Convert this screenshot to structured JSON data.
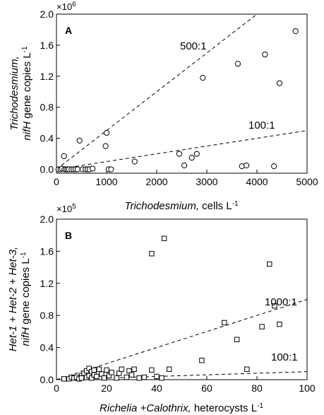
{
  "chart_data": [
    {
      "panel": "A",
      "type": "scatter",
      "multiplier": {
        "base": "×10",
        "exp": "6"
      },
      "xlabel": {
        "italic": "Trichodesmium,",
        "rest": " cells L",
        "sup": "-1"
      },
      "ylabel": {
        "line1": "Trichodesmium,",
        "line2_italic": "nifH",
        "line2_rest": " gene copies L",
        "sup": "-1"
      },
      "xlim": [
        0,
        5000
      ],
      "ylim": [
        -0.05,
        2.0
      ],
      "xticks": [
        0,
        1000,
        2000,
        3000,
        4000,
        5000
      ],
      "xtick_labels": [
        "0",
        "1000",
        "2000",
        "3000",
        "4000",
        "5000"
      ],
      "yticks": [
        0.0,
        0.4,
        0.8,
        1.2,
        1.6,
        2.0
      ],
      "ytick_labels": [
        "0.0",
        "0.4",
        "0.8",
        "1.2",
        "1.6",
        "2.0"
      ],
      "marker": "circle",
      "ratio_lines": [
        {
          "label": "500:1",
          "slope": 0.0005
        },
        {
          "label": "100:1",
          "slope": 0.0001
        }
      ],
      "points": [
        [
          40,
          0.0
        ],
        [
          80,
          0.0
        ],
        [
          110,
          0.01
        ],
        [
          150,
          0.17
        ],
        [
          160,
          0.0
        ],
        [
          190,
          0.0
        ],
        [
          220,
          0.0
        ],
        [
          250,
          0.0
        ],
        [
          300,
          0.0
        ],
        [
          340,
          0.0
        ],
        [
          380,
          0.0
        ],
        [
          420,
          0.0
        ],
        [
          460,
          0.37
        ],
        [
          520,
          0.0
        ],
        [
          580,
          0.0
        ],
        [
          620,
          0.0
        ],
        [
          660,
          0.0
        ],
        [
          720,
          0.01
        ],
        [
          980,
          0.3
        ],
        [
          1000,
          0.47
        ],
        [
          1040,
          0.0
        ],
        [
          1090,
          0.0
        ],
        [
          1560,
          0.1
        ],
        [
          2450,
          0.2
        ],
        [
          2550,
          0.05
        ],
        [
          2700,
          0.15
        ],
        [
          2800,
          0.2
        ],
        [
          2920,
          1.18
        ],
        [
          3620,
          1.36
        ],
        [
          3700,
          0.04
        ],
        [
          3790,
          0.05
        ],
        [
          4160,
          1.48
        ],
        [
          4340,
          0.04
        ],
        [
          4450,
          1.11
        ],
        [
          4770,
          1.78
        ]
      ]
    },
    {
      "panel": "B",
      "type": "scatter",
      "multiplier": {
        "base": "×10",
        "exp": "5"
      },
      "xlabel": {
        "italic": "Richelia +Calothrix,",
        "rest": " heterocysts L",
        "sup": "-1"
      },
      "ylabel": {
        "line1": "Het-1 + Het-2 + Het-3,",
        "line2_italic": "nifH",
        "line2_rest": " gene copies L",
        "sup": "-1"
      },
      "xlim": [
        0,
        100
      ],
      "ylim": [
        0,
        2.0
      ],
      "xticks": [
        0,
        20,
        40,
        60,
        80,
        100
      ],
      "xtick_labels": [
        "0",
        "20",
        "40",
        "60",
        "80",
        "100"
      ],
      "yticks": [
        0.0,
        0.4,
        0.8,
        1.2,
        1.6,
        2.0
      ],
      "ytick_labels": [
        "0.0",
        "0.4",
        "0.8",
        "1.2",
        "1.6",
        "2.0"
      ],
      "marker": "square",
      "ratio_lines": [
        {
          "label": "1000:1",
          "slope": 0.01
        },
        {
          "label": "100:1",
          "slope": 0.001
        }
      ],
      "points": [
        [
          3,
          0.01
        ],
        [
          5,
          0.01
        ],
        [
          6,
          0.03
        ],
        [
          7,
          0.02
        ],
        [
          8,
          0.03
        ],
        [
          9,
          0.01
        ],
        [
          10,
          0.05
        ],
        [
          10,
          0.02
        ],
        [
          11,
          0.08
        ],
        [
          12,
          0.03
        ],
        [
          12,
          0.11
        ],
        [
          13,
          0.05
        ],
        [
          13,
          0.14
        ],
        [
          14,
          0.02
        ],
        [
          14,
          0.1
        ],
        [
          15,
          0.06
        ],
        [
          15,
          0.12
        ],
        [
          16,
          0.04
        ],
        [
          17,
          0.13
        ],
        [
          18,
          0.07
        ],
        [
          19,
          0.02
        ],
        [
          20,
          0.12
        ],
        [
          21,
          0.05
        ],
        [
          22,
          0.09
        ],
        [
          24,
          0.02
        ],
        [
          25,
          0.08
        ],
        [
          26,
          0.13
        ],
        [
          28,
          0.03
        ],
        [
          29,
          0.11
        ],
        [
          30,
          0.06
        ],
        [
          31,
          0.13
        ],
        [
          33,
          0.02
        ],
        [
          35,
          0.03
        ],
        [
          38,
          1.57
        ],
        [
          38,
          0.12
        ],
        [
          40,
          0.04
        ],
        [
          42,
          0.02
        ],
        [
          43,
          1.76
        ],
        [
          45,
          0.13
        ],
        [
          58,
          0.24
        ],
        [
          67,
          0.71
        ],
        [
          72,
          0.5
        ],
        [
          76,
          0.13
        ],
        [
          82,
          0.66
        ],
        [
          85,
          1.44
        ],
        [
          87,
          0.92
        ],
        [
          89,
          0.69
        ]
      ]
    }
  ]
}
